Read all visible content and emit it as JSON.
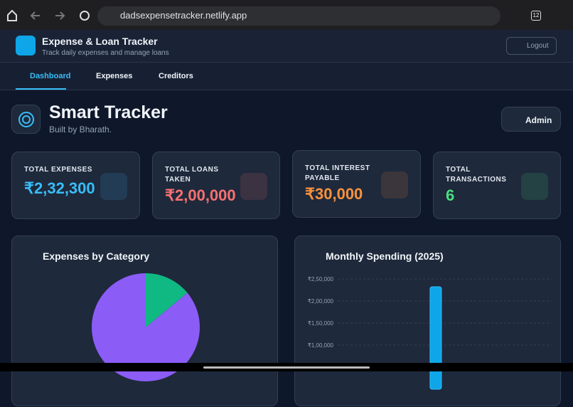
{
  "browser": {
    "url": "dadsexpensetracker.netlify.app",
    "tabs": "12"
  },
  "header": {
    "title": "Expense & Loan Tracker",
    "subtitle": "Track daily expenses and manage loans",
    "logout": "Logout"
  },
  "nav": [
    "Dashboard",
    "Expenses",
    "Creditors"
  ],
  "page": {
    "title": "Smart Tracker",
    "subtitle": "Built by Bharath.",
    "admin": "Admin"
  },
  "stats": [
    {
      "label": "TOTAL EXPENSES",
      "value": "₹2,32,300",
      "color": "#38bdf8"
    },
    {
      "label": "TOTAL LOANS TAKEN",
      "value": "₹2,00,000",
      "color": "#f87171"
    },
    {
      "label": "TOTAL INTEREST PAYABLE",
      "value": "₹30,000",
      "color": "#fb923c"
    },
    {
      "label": "TOTAL TRANSACTIONS",
      "value": "6",
      "color": "#4ade80"
    }
  ],
  "charts": [
    {
      "type": "pie",
      "title": "Expenses by Category",
      "values": [
        14,
        86
      ],
      "colors": [
        "#10b981",
        "#8b5cf6"
      ]
    },
    {
      "type": "bar",
      "title": "Monthly Spending (2025)",
      "categories": [
        null,
        null,
        null,
        null,
        null,
        null,
        null,
        null,
        null,
        null,
        null,
        null
      ],
      "values": [
        0,
        0,
        0,
        0,
        0,
        232300,
        0,
        0,
        0,
        0,
        0,
        0
      ],
      "color": "#0ea5e9",
      "ylim": [
        0,
        250000
      ],
      "yticks": [
        {
          "value": 100000,
          "label": "₹1,00,000"
        },
        {
          "value": 150000,
          "label": "₹1,50,000"
        },
        {
          "value": 200000,
          "label": "₹2,00,000"
        },
        {
          "value": 250000,
          "label": "₹2,50,000"
        }
      ],
      "grid": true
    }
  ]
}
